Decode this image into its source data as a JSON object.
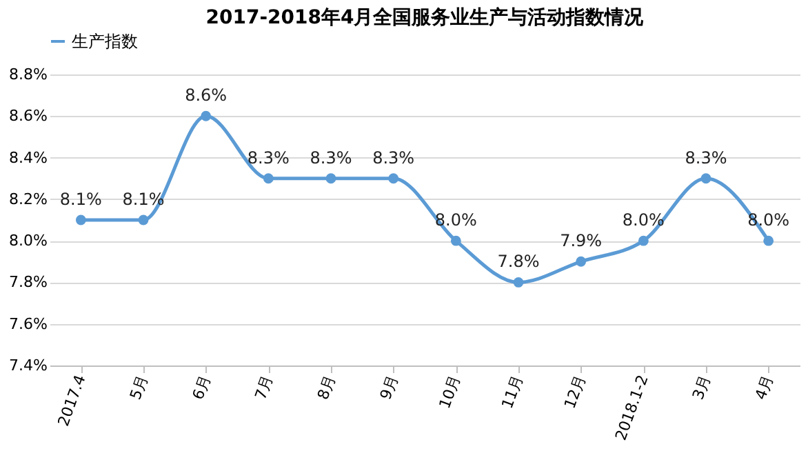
{
  "chart_data": {
    "type": "line",
    "title": "2017-2018年4月全国服务业生产与活动指数情况",
    "categories": [
      "2017.4",
      "5月",
      "6月",
      "7月",
      "8月",
      "9月",
      "10月",
      "11月",
      "12月",
      "2018.1-2",
      "3月",
      "4月"
    ],
    "series": [
      {
        "name": "生产指数",
        "color": "#5b9bd5",
        "values": [
          8.1,
          8.1,
          8.6,
          8.3,
          8.3,
          8.3,
          8.0,
          7.8,
          7.9,
          8.0,
          8.3,
          8.0
        ],
        "value_labels": [
          "8.1%",
          "8.1%",
          "8.6%",
          "8.3%",
          "8.3%",
          "8.3%",
          "8.0%",
          "7.8%",
          "7.9%",
          "8.0%",
          "8.3%",
          "8.0%"
        ]
      }
    ],
    "ylim": [
      7.4,
      8.8
    ],
    "yticks": [
      {
        "value": 7.4,
        "label": "7.4%"
      },
      {
        "value": 7.6,
        "label": "7.6%"
      },
      {
        "value": 7.8,
        "label": "7.8%"
      },
      {
        "value": 8.0,
        "label": "8.0%"
      },
      {
        "value": 8.2,
        "label": "8.2%"
      },
      {
        "value": 8.4,
        "label": "8.4%"
      },
      {
        "value": 8.6,
        "label": "8.6%"
      },
      {
        "value": 8.8,
        "label": "8.8%"
      }
    ],
    "grid": "y",
    "legend": "top",
    "marker": "circle",
    "line_style": "solid"
  }
}
